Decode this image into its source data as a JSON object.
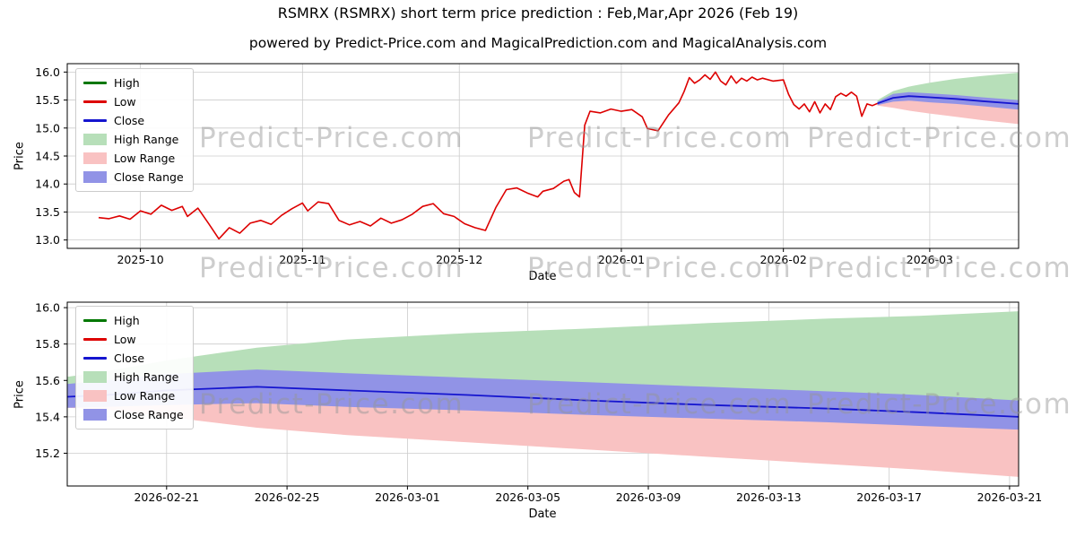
{
  "title": "RSMRX (RSMRX) short term price prediction : Feb,Mar,Apr 2026 (Feb 19)",
  "subtitle": "powered by Predict-Price.com and MagicalPrediction.com and MagicalAnalysis.com",
  "watermark_text": "Predict-Price.com",
  "colors": {
    "high_line": "#007700",
    "low_line": "#dd0000",
    "close_line": "#1515cf",
    "high_range_fill": "#b7dfb9",
    "low_range_fill": "#f9c2c2",
    "close_range_fill": "#9193e6",
    "grid": "#cccccc",
    "axis": "#000000"
  },
  "legend": [
    {
      "key": "high",
      "label": "High",
      "kind": "line",
      "color": "#007700"
    },
    {
      "key": "low",
      "label": "Low",
      "kind": "line",
      "color": "#dd0000"
    },
    {
      "key": "close",
      "label": "Close",
      "kind": "line",
      "color": "#1515cf"
    },
    {
      "key": "high-range",
      "label": "High Range",
      "kind": "patch",
      "color": "#b7dfb9"
    },
    {
      "key": "low-range",
      "label": "Low Range",
      "kind": "patch",
      "color": "#f9c2c2"
    },
    {
      "key": "close-range",
      "label": "Close Range",
      "kind": "patch",
      "color": "#9193e6"
    }
  ],
  "chart_data": [
    {
      "name": "history-and-prediction",
      "type": "line",
      "xlabel": "Date",
      "ylabel": "Price",
      "x_range": [
        0,
        182
      ],
      "y_range": [
        12.85,
        16.15
      ],
      "x_ticks": [
        {
          "v": 14,
          "label": "2025-10"
        },
        {
          "v": 45,
          "label": "2025-11"
        },
        {
          "v": 75,
          "label": "2025-12"
        },
        {
          "v": 106,
          "label": "2026-01"
        },
        {
          "v": 137,
          "label": "2026-02"
        },
        {
          "v": 165,
          "label": "2026-03"
        }
      ],
      "y_ticks": [
        {
          "v": 13.0,
          "label": "13.0"
        },
        {
          "v": 13.5,
          "label": "13.5"
        },
        {
          "v": 14.0,
          "label": "14.0"
        },
        {
          "v": 14.5,
          "label": "14.5"
        },
        {
          "v": 15.0,
          "label": "15.0"
        },
        {
          "v": 15.5,
          "label": "15.5"
        },
        {
          "v": 16.0,
          "label": "16.0"
        }
      ],
      "series": [
        {
          "name": "high-range-band",
          "kind": "band",
          "color": "#b7dfb9",
          "x": [
            155,
            158,
            161,
            165,
            170,
            175,
            182
          ],
          "top": [
            15.5,
            15.66,
            15.74,
            15.81,
            15.88,
            15.93,
            15.99
          ],
          "bottom": [
            15.44,
            15.54,
            15.57,
            15.55,
            15.52,
            15.48,
            15.43
          ]
        },
        {
          "name": "low-range-band",
          "kind": "band",
          "color": "#f9c2c2",
          "x": [
            155,
            158,
            161,
            165,
            170,
            175,
            182
          ],
          "top": [
            15.44,
            15.54,
            15.57,
            15.55,
            15.52,
            15.48,
            15.43
          ],
          "bottom": [
            15.4,
            15.36,
            15.31,
            15.26,
            15.2,
            15.14,
            15.07
          ]
        },
        {
          "name": "close-range-band",
          "kind": "band",
          "color": "#9193e6",
          "x": [
            155,
            158,
            161,
            165,
            170,
            175,
            182
          ],
          "top": [
            15.47,
            15.61,
            15.64,
            15.62,
            15.59,
            15.55,
            15.5
          ],
          "bottom": [
            15.41,
            15.47,
            15.49,
            15.46,
            15.43,
            15.39,
            15.33
          ]
        },
        {
          "name": "price-history-line",
          "kind": "line",
          "color": "#dd0000",
          "width": 1.6,
          "points": [
            [
              6,
              13.4
            ],
            [
              8,
              13.38
            ],
            [
              10,
              13.43
            ],
            [
              12,
              13.37
            ],
            [
              14,
              13.52
            ],
            [
              16,
              13.46
            ],
            [
              18,
              13.62
            ],
            [
              20,
              13.53
            ],
            [
              22,
              13.6
            ],
            [
              23,
              13.42
            ],
            [
              25,
              13.57
            ],
            [
              27,
              13.3
            ],
            [
              29,
              13.02
            ],
            [
              31,
              13.22
            ],
            [
              33,
              13.12
            ],
            [
              35,
              13.3
            ],
            [
              37,
              13.35
            ],
            [
              39,
              13.28
            ],
            [
              41,
              13.44
            ],
            [
              43,
              13.56
            ],
            [
              45,
              13.66
            ],
            [
              46,
              13.52
            ],
            [
              48,
              13.68
            ],
            [
              50,
              13.65
            ],
            [
              52,
              13.35
            ],
            [
              54,
              13.27
            ],
            [
              56,
              13.33
            ],
            [
              58,
              13.25
            ],
            [
              60,
              13.39
            ],
            [
              62,
              13.3
            ],
            [
              64,
              13.36
            ],
            [
              66,
              13.46
            ],
            [
              68,
              13.6
            ],
            [
              70,
              13.65
            ],
            [
              72,
              13.47
            ],
            [
              74,
              13.42
            ],
            [
              76,
              13.29
            ],
            [
              78,
              13.22
            ],
            [
              80,
              13.17
            ],
            [
              82,
              13.58
            ],
            [
              84,
              13.9
            ],
            [
              86,
              13.93
            ],
            [
              88,
              13.84
            ],
            [
              90,
              13.77
            ],
            [
              91,
              13.87
            ],
            [
              93,
              13.92
            ],
            [
              95,
              14.05
            ],
            [
              96,
              14.08
            ],
            [
              97,
              13.85
            ],
            [
              98,
              13.77
            ],
            [
              99,
              15.05
            ],
            [
              100,
              15.3
            ],
            [
              102,
              15.27
            ],
            [
              104,
              15.34
            ],
            [
              106,
              15.3
            ],
            [
              108,
              15.33
            ],
            [
              110,
              15.2
            ],
            [
              111,
              14.99
            ],
            [
              113,
              14.95
            ],
            [
              115,
              15.23
            ],
            [
              117,
              15.45
            ],
            [
              118,
              15.65
            ],
            [
              119,
              15.9
            ],
            [
              120,
              15.8
            ],
            [
              121,
              15.86
            ],
            [
              122,
              15.95
            ],
            [
              123,
              15.87
            ],
            [
              124,
              16.0
            ],
            [
              125,
              15.84
            ],
            [
              126,
              15.77
            ],
            [
              127,
              15.93
            ],
            [
              128,
              15.8
            ],
            [
              129,
              15.89
            ],
            [
              130,
              15.84
            ],
            [
              131,
              15.91
            ],
            [
              132,
              15.86
            ],
            [
              133,
              15.89
            ],
            [
              135,
              15.84
            ],
            [
              137,
              15.86
            ],
            [
              138,
              15.6
            ],
            [
              139,
              15.42
            ],
            [
              140,
              15.34
            ],
            [
              141,
              15.43
            ],
            [
              142,
              15.29
            ],
            [
              143,
              15.47
            ],
            [
              144,
              15.27
            ],
            [
              145,
              15.43
            ],
            [
              146,
              15.33
            ],
            [
              147,
              15.56
            ],
            [
              148,
              15.62
            ],
            [
              149,
              15.57
            ],
            [
              150,
              15.64
            ],
            [
              151,
              15.57
            ],
            [
              152,
              15.21
            ],
            [
              153,
              15.43
            ],
            [
              154,
              15.4
            ],
            [
              155,
              15.44
            ]
          ]
        },
        {
          "name": "close-prediction-line",
          "kind": "line",
          "color": "#1515cf",
          "width": 1.8,
          "points": [
            [
              155,
              15.44
            ],
            [
              158,
              15.54
            ],
            [
              161,
              15.57
            ],
            [
              165,
              15.55
            ],
            [
              170,
              15.52
            ],
            [
              175,
              15.48
            ],
            [
              182,
              15.43
            ]
          ]
        }
      ]
    },
    {
      "name": "prediction-detail",
      "type": "line",
      "xlabel": "Date",
      "ylabel": "Price",
      "x_range": [
        -1.3,
        30.3
      ],
      "y_range": [
        15.02,
        16.03
      ],
      "x_ticks": [
        {
          "v": 2,
          "label": "2026-02-21"
        },
        {
          "v": 6,
          "label": "2026-02-25"
        },
        {
          "v": 10,
          "label": "2026-03-01"
        },
        {
          "v": 14,
          "label": "2026-03-05"
        },
        {
          "v": 18,
          "label": "2026-03-09"
        },
        {
          "v": 22,
          "label": "2026-03-13"
        },
        {
          "v": 26,
          "label": "2026-03-17"
        },
        {
          "v": 30,
          "label": "2026-03-21"
        }
      ],
      "y_ticks": [
        {
          "v": 15.2,
          "label": "15.2"
        },
        {
          "v": 15.4,
          "label": "15.4"
        },
        {
          "v": 15.6,
          "label": "15.6"
        },
        {
          "v": 15.8,
          "label": "15.8"
        },
        {
          "v": 16.0,
          "label": "16.0"
        }
      ],
      "series": [
        {
          "name": "high-range-band",
          "kind": "band",
          "color": "#b7dfb9",
          "x": [
            -1.3,
            0,
            2,
            5,
            8,
            12,
            16,
            20,
            24,
            27,
            30.3
          ],
          "top": [
            15.62,
            15.65,
            15.71,
            15.78,
            15.825,
            15.86,
            15.885,
            15.915,
            15.94,
            15.955,
            15.98
          ],
          "bottom": [
            15.51,
            15.52,
            15.545,
            15.565,
            15.545,
            15.52,
            15.49,
            15.465,
            15.445,
            15.425,
            15.4
          ]
        },
        {
          "name": "low-range-band",
          "kind": "band",
          "color": "#f9c2c2",
          "x": [
            -1.3,
            0,
            2,
            5,
            8,
            12,
            16,
            20,
            24,
            27,
            30.3
          ],
          "top": [
            15.51,
            15.52,
            15.545,
            15.565,
            15.545,
            15.52,
            15.49,
            15.465,
            15.445,
            15.425,
            15.4
          ],
          "bottom": [
            15.45,
            15.44,
            15.4,
            15.34,
            15.3,
            15.26,
            15.22,
            15.18,
            15.14,
            15.11,
            15.07
          ]
        },
        {
          "name": "close-range-band",
          "kind": "band",
          "color": "#9193e6",
          "x": [
            -1.3,
            0,
            2,
            5,
            8,
            12,
            16,
            20,
            24,
            27,
            30.3
          ],
          "top": [
            15.58,
            15.6,
            15.635,
            15.66,
            15.64,
            15.615,
            15.59,
            15.565,
            15.54,
            15.52,
            15.49
          ],
          "bottom": [
            15.45,
            15.455,
            15.465,
            15.475,
            15.455,
            15.435,
            15.41,
            15.39,
            15.37,
            15.35,
            15.33
          ]
        },
        {
          "name": "close-prediction-line",
          "kind": "line",
          "color": "#1515cf",
          "width": 1.8,
          "points": [
            [
              -1.3,
              15.51
            ],
            [
              0,
              15.52
            ],
            [
              2,
              15.545
            ],
            [
              5,
              15.565
            ],
            [
              8,
              15.545
            ],
            [
              12,
              15.52
            ],
            [
              16,
              15.49
            ],
            [
              20,
              15.465
            ],
            [
              24,
              15.445
            ],
            [
              27,
              15.425
            ],
            [
              30.3,
              15.4
            ]
          ]
        }
      ]
    }
  ]
}
